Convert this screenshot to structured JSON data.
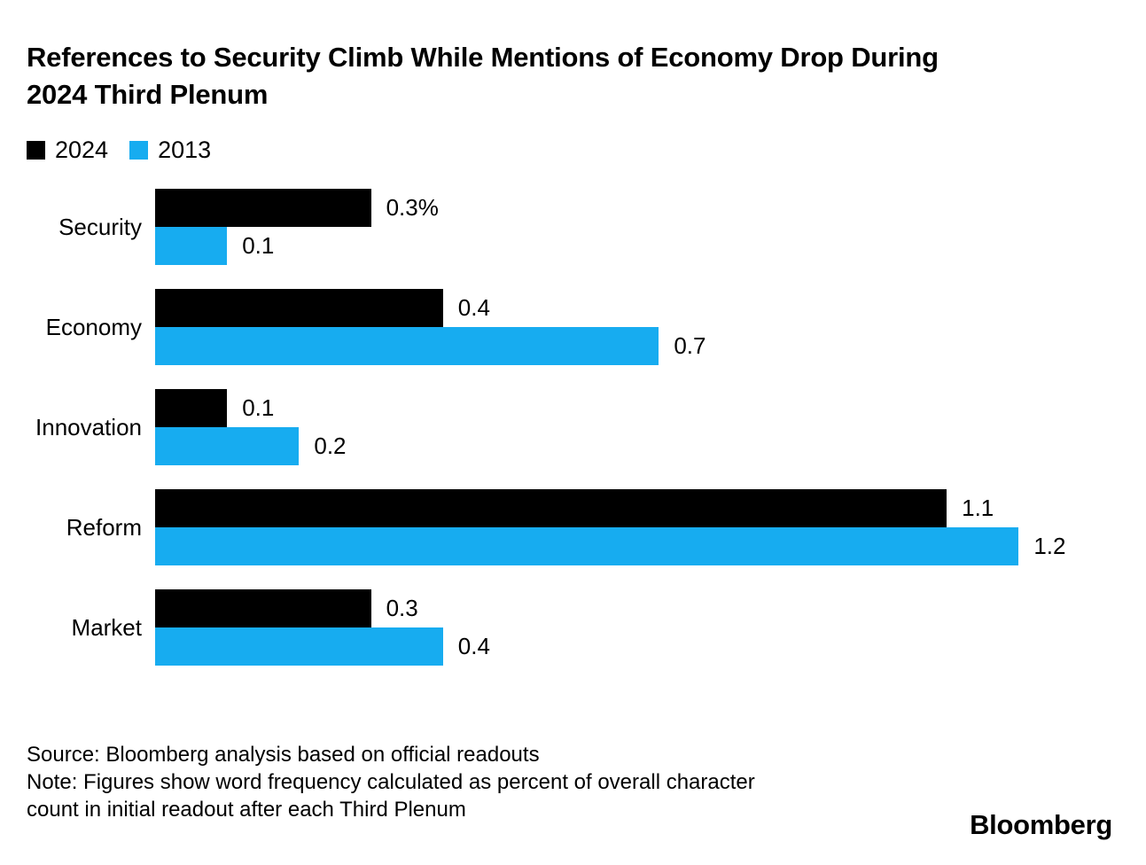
{
  "header": {
    "title": "References to Security Climb While Mentions of Economy Drop During\n2024 Third Plenum"
  },
  "legend": [
    {
      "label": "2024",
      "color": "#000000"
    },
    {
      "label": "2013",
      "color": "#17ACF0"
    }
  ],
  "chart_data": {
    "type": "bar",
    "orientation": "horizontal",
    "title": "References to Security Climb While Mentions of Economy Drop During 2024 Third Plenum",
    "categories": [
      "Security",
      "Economy",
      "Innovation",
      "Reform",
      "Market"
    ],
    "series": [
      {
        "name": "2024",
        "color": "#000000",
        "values": [
          0.3,
          0.4,
          0.1,
          1.1,
          0.3
        ],
        "labels": [
          "0.3%",
          "0.4",
          "0.1",
          "1.1",
          "0.3"
        ]
      },
      {
        "name": "2013",
        "color": "#17ACF0",
        "values": [
          0.1,
          0.7,
          0.2,
          1.2,
          0.4
        ],
        "labels": [
          "0.1",
          "0.7",
          "0.2",
          "1.2",
          "0.4"
        ]
      }
    ],
    "xlabel": "",
    "ylabel": "",
    "xlim": [
      0,
      1.34
    ],
    "grid": false,
    "legend_position": "top-left",
    "value_unit": "percent of overall character count"
  },
  "footer": {
    "source": "Source: Bloomberg analysis based on official readouts",
    "note": "Note: Figures show word frequency calculated as percent of overall character\ncount in initial readout after each Third Plenum",
    "brand": "Bloomberg"
  }
}
